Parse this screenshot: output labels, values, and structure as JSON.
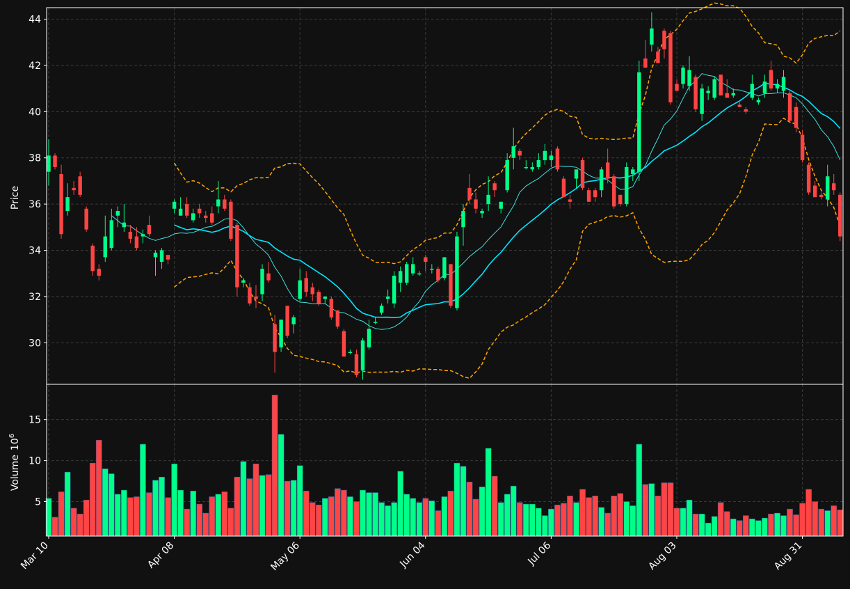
{
  "chart_data": {
    "type": "candlestick",
    "panels": [
      {
        "name": "price",
        "ylabel": "Price",
        "ylim": [
          28.2,
          44.5
        ],
        "yticks": [
          30,
          32,
          34,
          36,
          38,
          40,
          42,
          44
        ],
        "grid": true
      },
      {
        "name": "volume",
        "ylabel": "Volume",
        "ylabel_exponent": "10",
        "ylabel_exponent_power": "6",
        "ylim": [
          0.8,
          19.3
        ],
        "yticks": [
          5,
          10,
          15
        ],
        "grid": true
      }
    ],
    "x_tick_labels": [
      {
        "label": "Mar 10",
        "index": 0
      },
      {
        "label": "Apr 08",
        "index": 20
      },
      {
        "label": "May 06",
        "index": 40
      },
      {
        "label": "Jun 04",
        "index": 60
      },
      {
        "label": "Jul 06",
        "index": 80
      },
      {
        "label": "Aug 03",
        "index": 100
      },
      {
        "label": "Aug 31",
        "index": 120
      }
    ],
    "x_tick_rotation": "45",
    "candles": {
      "fields": [
        "open",
        "high",
        "low",
        "close",
        "volume"
      ],
      "rows": [
        [
          37.4,
          38.8,
          36.8,
          38.1,
          5.4
        ],
        [
          38.1,
          38.2,
          37.5,
          37.6,
          3.1
        ],
        [
          37.3,
          37.7,
          34.5,
          34.7,
          6.2
        ],
        [
          35.7,
          36.9,
          35.5,
          36.3,
          8.6
        ],
        [
          36.7,
          37.0,
          36.4,
          36.6,
          4.2
        ],
        [
          37.2,
          37.4,
          36.3,
          36.4,
          3.5
        ],
        [
          35.8,
          35.9,
          34.8,
          34.9,
          5.2
        ],
        [
          34.2,
          34.3,
          32.9,
          33.1,
          9.7
        ],
        [
          33.2,
          33.4,
          32.7,
          32.9,
          12.5
        ],
        [
          33.7,
          35.5,
          33.5,
          34.6,
          9.0
        ],
        [
          34.1,
          35.8,
          34.0,
          35.3,
          8.4
        ],
        [
          35.5,
          35.9,
          35.0,
          35.7,
          5.9
        ],
        [
          35.0,
          36.0,
          34.8,
          35.2,
          6.4
        ],
        [
          34.8,
          35.1,
          34.3,
          34.5,
          5.5
        ],
        [
          34.6,
          35.0,
          34.0,
          34.1,
          5.6
        ],
        [
          34.6,
          34.9,
          34.3,
          34.7,
          12.0
        ],
        [
          35.1,
          35.5,
          34.6,
          34.7,
          6.1
        ],
        [
          33.7,
          34.0,
          32.9,
          33.9,
          7.6
        ],
        [
          33.5,
          34.1,
          33.2,
          34.0,
          8.0
        ],
        [
          33.8,
          33.8,
          33.4,
          33.6,
          5.5
        ],
        [
          35.8,
          36.2,
          35.6,
          36.1,
          9.6
        ],
        [
          35.5,
          36.3,
          35.5,
          35.8,
          6.4
        ],
        [
          36.0,
          36.3,
          35.4,
          35.5,
          4.1
        ],
        [
          35.3,
          35.8,
          35.2,
          35.6,
          6.3
        ],
        [
          35.8,
          36.0,
          35.4,
          35.6,
          4.7
        ],
        [
          35.5,
          35.7,
          35.2,
          35.4,
          3.6
        ],
        [
          35.6,
          35.9,
          35.1,
          35.2,
          5.6
        ],
        [
          35.9,
          37.0,
          35.6,
          36.2,
          5.9
        ],
        [
          36.2,
          36.4,
          35.7,
          35.8,
          6.2
        ],
        [
          36.1,
          36.2,
          34.4,
          34.5,
          4.2
        ],
        [
          35.1,
          35.2,
          32.0,
          32.4,
          8.0
        ],
        [
          32.6,
          32.8,
          32.4,
          32.7,
          9.9
        ],
        [
          32.4,
          32.6,
          31.6,
          31.7,
          7.8
        ],
        [
          32.0,
          32.5,
          31.5,
          31.9,
          9.6
        ],
        [
          32.1,
          33.4,
          31.8,
          33.2,
          8.2
        ],
        [
          33.0,
          33.5,
          32.6,
          32.7,
          8.3
        ],
        [
          30.8,
          31.2,
          28.7,
          29.6,
          18.0
        ],
        [
          29.8,
          31.0,
          29.6,
          31.0,
          13.2
        ],
        [
          31.6,
          31.6,
          30.2,
          30.3,
          7.5
        ],
        [
          30.8,
          31.2,
          30.4,
          31.1,
          7.6
        ],
        [
          31.9,
          33.2,
          31.8,
          32.7,
          9.4
        ],
        [
          32.8,
          33.1,
          32.0,
          32.2,
          6.3
        ],
        [
          32.4,
          32.6,
          31.8,
          32.1,
          4.9
        ],
        [
          32.2,
          32.3,
          31.6,
          31.7,
          4.6
        ],
        [
          31.9,
          32.0,
          31.7,
          32.0,
          5.4
        ],
        [
          31.9,
          32.0,
          31.0,
          31.1,
          5.6
        ],
        [
          31.4,
          31.4,
          30.6,
          30.7,
          6.6
        ],
        [
          30.5,
          30.6,
          29.4,
          29.4,
          6.4
        ],
        [
          29.6,
          29.7,
          29.5,
          29.6,
          5.6
        ],
        [
          29.5,
          29.7,
          28.5,
          28.6,
          5.0
        ],
        [
          28.8,
          30.2,
          28.4,
          30.1,
          6.4
        ],
        [
          29.8,
          31.0,
          29.7,
          30.6,
          6.1
        ],
        [
          30.9,
          31.1,
          30.8,
          30.9,
          6.1
        ],
        [
          31.3,
          31.7,
          31.2,
          31.6,
          4.9
        ],
        [
          31.9,
          32.3,
          31.7,
          32.0,
          4.5
        ],
        [
          31.7,
          33.1,
          31.5,
          32.9,
          4.9
        ],
        [
          32.6,
          33.3,
          32.2,
          33.1,
          8.7
        ],
        [
          32.6,
          33.5,
          32.5,
          33.4,
          5.9
        ],
        [
          33.0,
          33.7,
          32.9,
          33.4,
          5.4
        ],
        [
          33.0,
          33.1,
          32.9,
          33.0,
          4.9
        ],
        [
          33.7,
          33.8,
          33.1,
          33.5,
          5.4
        ],
        [
          33.2,
          33.4,
          33.0,
          33.2,
          5.1
        ],
        [
          33.2,
          33.3,
          32.6,
          32.7,
          3.9
        ],
        [
          32.8,
          33.7,
          32.7,
          33.7,
          5.6
        ],
        [
          33.4,
          33.4,
          31.5,
          31.6,
          6.3
        ],
        [
          31.5,
          34.8,
          31.4,
          34.6,
          9.7
        ],
        [
          35.0,
          36.0,
          34.2,
          35.7,
          9.3
        ],
        [
          36.7,
          37.3,
          36.0,
          36.2,
          7.4
        ],
        [
          36.2,
          36.5,
          35.6,
          35.8,
          5.3
        ],
        [
          35.6,
          35.8,
          35.4,
          35.7,
          6.8
        ],
        [
          36.0,
          37.2,
          35.7,
          36.4,
          11.5
        ],
        [
          36.9,
          37.0,
          36.3,
          36.6,
          8.1
        ],
        [
          35.8,
          36.1,
          35.6,
          36.1,
          4.9
        ],
        [
          36.6,
          38.2,
          36.5,
          37.9,
          5.9
        ],
        [
          38.0,
          39.3,
          37.5,
          38.5,
          6.9
        ],
        [
          38.3,
          38.4,
          37.9,
          38.1,
          4.9
        ],
        [
          37.6,
          37.9,
          37.5,
          37.6,
          4.7
        ],
        [
          37.5,
          37.8,
          37.4,
          37.6,
          4.7
        ],
        [
          37.6,
          38.2,
          37.5,
          37.9,
          4.2
        ],
        [
          37.9,
          38.6,
          37.7,
          38.3,
          3.3
        ],
        [
          37.9,
          38.3,
          37.6,
          38.1,
          4.1
        ],
        [
          38.4,
          38.5,
          37.4,
          37.5,
          4.6
        ],
        [
          37.1,
          37.2,
          36.3,
          36.3,
          4.8
        ],
        [
          36.2,
          36.4,
          35.8,
          36.1,
          5.7
        ],
        [
          37.1,
          37.3,
          36.7,
          37.5,
          4.9
        ],
        [
          37.9,
          38.0,
          36.6,
          36.7,
          6.5
        ],
        [
          36.6,
          36.7,
          36.1,
          36.1,
          5.5
        ],
        [
          36.6,
          36.7,
          36.1,
          36.3,
          5.7
        ],
        [
          36.6,
          37.6,
          36.3,
          37.5,
          4.3
        ],
        [
          37.8,
          38.4,
          36.9,
          37.1,
          3.6
        ],
        [
          37.2,
          37.3,
          35.8,
          35.9,
          5.7
        ],
        [
          36.4,
          36.4,
          35.9,
          36.0,
          6.0
        ],
        [
          36.0,
          37.8,
          35.9,
          37.6,
          5.0
        ],
        [
          37.3,
          37.6,
          37.0,
          37.5,
          4.5
        ],
        [
          37.4,
          42.2,
          37.0,
          41.7,
          12.0
        ],
        [
          42.3,
          43.1,
          41.9,
          41.9,
          7.1
        ],
        [
          42.9,
          44.3,
          42.6,
          43.6,
          7.2
        ],
        [
          42.6,
          42.8,
          42.1,
          42.1,
          5.7
        ],
        [
          43.5,
          43.6,
          42.3,
          42.7,
          7.3
        ],
        [
          43.4,
          43.5,
          40.3,
          40.4,
          7.3
        ],
        [
          41.2,
          41.4,
          40.9,
          40.9,
          4.2
        ],
        [
          41.2,
          42.0,
          41.0,
          41.9,
          4.2
        ],
        [
          41.1,
          42.4,
          40.9,
          41.8,
          5.2
        ],
        [
          41.5,
          41.6,
          40.0,
          40.1,
          3.5
        ],
        [
          39.9,
          41.2,
          39.6,
          41.0,
          3.5
        ],
        [
          40.8,
          41.1,
          40.5,
          40.9,
          2.4
        ],
        [
          40.6,
          41.5,
          40.5,
          41.4,
          3.2
        ],
        [
          41.6,
          41.6,
          40.7,
          40.7,
          4.9
        ],
        [
          40.8,
          41.4,
          40.6,
          40.6,
          3.8
        ],
        [
          40.7,
          41.0,
          40.6,
          40.8,
          2.9
        ],
        [
          40.3,
          40.4,
          40.2,
          40.2,
          2.7
        ],
        [
          40.1,
          40.2,
          39.9,
          40.0,
          3.3
        ],
        [
          40.6,
          41.6,
          40.5,
          41.2,
          2.9
        ],
        [
          40.4,
          40.6,
          40.3,
          40.5,
          2.7
        ],
        [
          40.8,
          41.6,
          40.6,
          41.3,
          3.0
        ],
        [
          41.8,
          42.2,
          40.9,
          41.0,
          3.5
        ],
        [
          41.0,
          41.4,
          40.8,
          41.2,
          3.6
        ],
        [
          40.9,
          41.8,
          40.6,
          41.5,
          3.3
        ],
        [
          40.8,
          40.9,
          39.6,
          39.6,
          4.1
        ],
        [
          40.2,
          40.4,
          39.1,
          39.3,
          3.4
        ],
        [
          39.0,
          39.2,
          37.8,
          37.9,
          4.8
        ],
        [
          37.7,
          37.8,
          36.4,
          36.5,
          6.5
        ],
        [
          36.8,
          37.0,
          36.3,
          36.3,
          5.0
        ],
        [
          36.4,
          36.5,
          36.2,
          36.3,
          4.1
        ],
        [
          36.2,
          37.7,
          35.9,
          37.2,
          3.9
        ],
        [
          36.9,
          37.3,
          36.4,
          36.6,
          4.5
        ],
        [
          36.4,
          36.5,
          34.4,
          34.6,
          4.0
        ]
      ]
    },
    "overlays": [
      {
        "kind": "ma_short",
        "color": "#3fe0e0",
        "start": 10
      },
      {
        "kind": "ma_long",
        "color": "#00e5ff",
        "start": 20
      },
      {
        "kind": "bollinger_upper",
        "color": "#ffa500",
        "dashed": true,
        "start": 20
      },
      {
        "kind": "bollinger_lower",
        "color": "#ffa500",
        "dashed": true,
        "start": 20
      }
    ],
    "colors": {
      "background": "#111111",
      "up": "#00ff88",
      "down": "#ff4444",
      "volume_edge": "#2f5f9f",
      "grid": "#3a3a3a",
      "text": "#ffffff"
    }
  }
}
